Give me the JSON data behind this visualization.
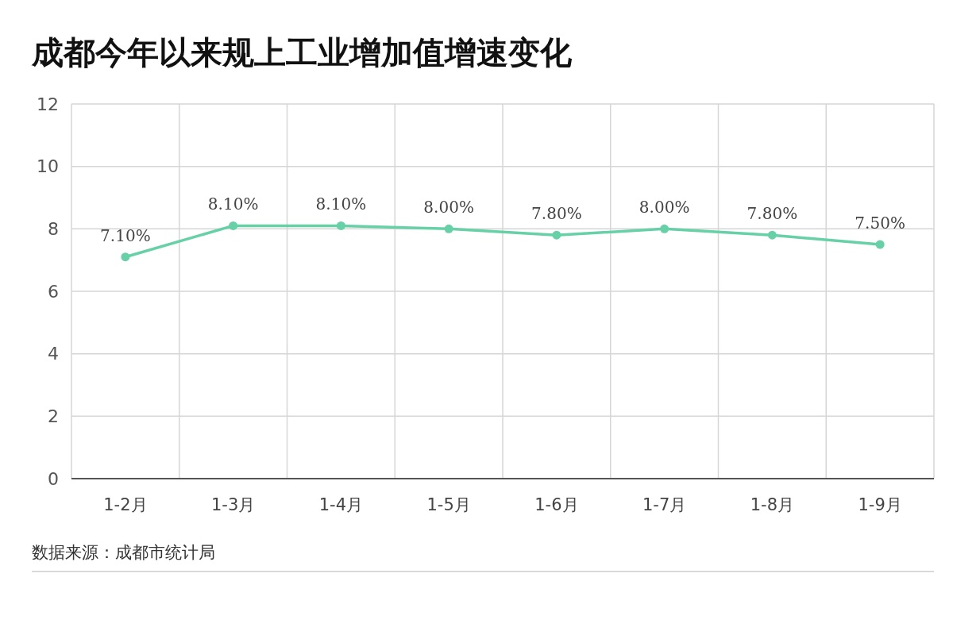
{
  "chart_data": {
    "type": "line",
    "title": "成都今年以来规上工业增加值增速变化",
    "categories": [
      "1-2月",
      "1-3月",
      "1-4月",
      "1-5月",
      "1-6月",
      "1-7月",
      "1-8月",
      "1-9月"
    ],
    "series": [
      {
        "color": "#66d1a6",
        "values": [
          7.1,
          8.1,
          8.1,
          8.0,
          7.8,
          8.0,
          7.8,
          7.5
        ],
        "value_labels": [
          "7.10%",
          "8.10%",
          "8.10%",
          "8.00%",
          "7.80%",
          "8.00%",
          "7.80%",
          "7.50%"
        ]
      }
    ],
    "ylim": [
      0,
      12
    ],
    "yticks": [
      0,
      2,
      4,
      6,
      8,
      10,
      12
    ],
    "grid": true,
    "marker": "circle",
    "line_style": "solid",
    "annotations": [
      "数据来源：成都市统计局"
    ]
  }
}
